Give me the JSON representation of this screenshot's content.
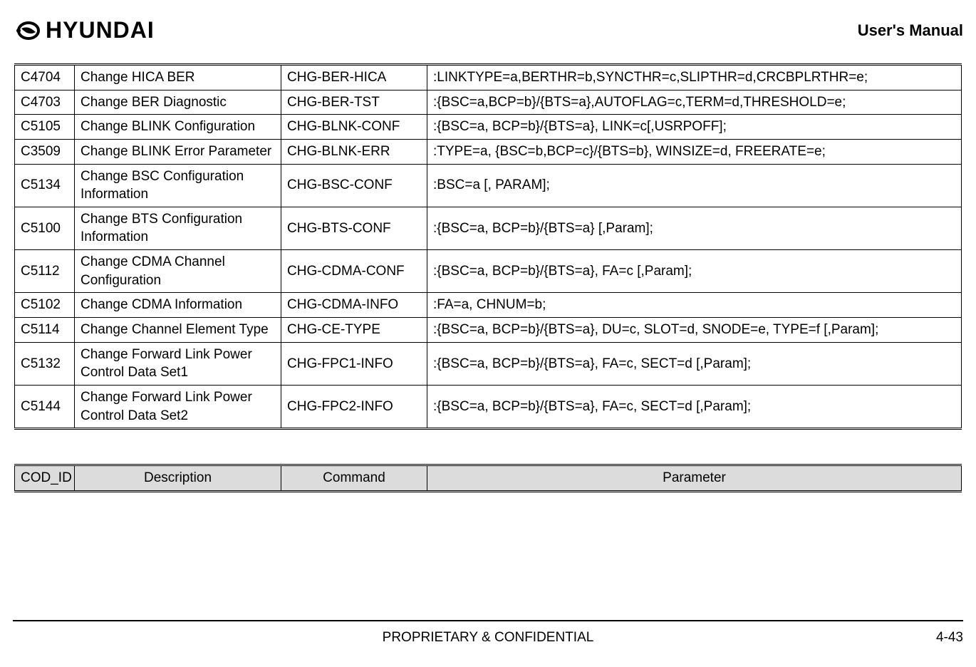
{
  "header": {
    "brand_text": "HYUNDAI",
    "manual_title": "User's Manual"
  },
  "main_table": {
    "columns": [
      "cod_id",
      "description",
      "command",
      "parameter"
    ],
    "rows": [
      {
        "cod_id": "C4704",
        "description": "Change HICA BER",
        "command": "CHG-BER-HICA",
        "parameter": ":LINKTYPE=a,BERTHR=b,SYNCTHR=c,SLIPTHR=d,CRCBPLRTHR=e;"
      },
      {
        "cod_id": "C4703",
        "description": "Change BER Diagnostic",
        "command": "CHG-BER-TST",
        "parameter": ":{BSC=a,BCP=b}/{BTS=a},AUTOFLAG=c,TERM=d,THRESHOLD=e;"
      },
      {
        "cod_id": "C5105",
        "description": "Change BLINK Configuration",
        "command": "CHG-BLNK-CONF",
        "parameter": ":{BSC=a, BCP=b}/{BTS=a}, LINK=c[,USRPOFF];"
      },
      {
        "cod_id": "C3509",
        "description": "Change BLINK Error Parameter",
        "command": "CHG-BLNK-ERR",
        "parameter": ":TYPE=a, {BSC=b,BCP=c}/{BTS=b}, WINSIZE=d, FREERATE=e;"
      },
      {
        "cod_id": "C5134",
        "description": "Change BSC Configuration Information",
        "command": "CHG-BSC-CONF",
        "parameter": ":BSC=a [, PARAM];"
      },
      {
        "cod_id": "C5100",
        "description": "Change BTS Configuration Information",
        "command": "CHG-BTS-CONF",
        "parameter": ":{BSC=a, BCP=b}/{BTS=a} [,Param];"
      },
      {
        "cod_id": "C5112",
        "description": "Change CDMA Channel Configuration",
        "command": "CHG-CDMA-CONF",
        "parameter": ":{BSC=a, BCP=b}/{BTS=a}, FA=c [,Param];"
      },
      {
        "cod_id": "C5102",
        "description": "Change CDMA Information",
        "command": "CHG-CDMA-INFO",
        "parameter": ":FA=a, CHNUM=b;"
      },
      {
        "cod_id": "C5114",
        "description": "Change Channel Element Type",
        "command": "CHG-CE-TYPE",
        "parameter": ":{BSC=a, BCP=b}/{BTS=a}, DU=c, SLOT=d, SNODE=e, TYPE=f [,Param];",
        "justify": true
      },
      {
        "cod_id": "C5132",
        "description": "Change Forward Link Power Control Data Set1",
        "command": "CHG-FPC1-INFO",
        "parameter": ":{BSC=a, BCP=b}/{BTS=a}, FA=c, SECT=d [,Param];"
      },
      {
        "cod_id": "C5144",
        "description": "Change Forward Link Power Control Data Set2",
        "command": "CHG-FPC2-INFO",
        "parameter": ":{BSC=a, BCP=b}/{BTS=a}, FA=c, SECT=d [,Param];"
      }
    ]
  },
  "header_table": {
    "headers": {
      "cod_id": "COD_ID",
      "description": "Description",
      "command": "Command",
      "parameter": "Parameter"
    }
  },
  "footer": {
    "center": "PROPRIETARY & CONFIDENTIAL",
    "right": "4-43"
  }
}
